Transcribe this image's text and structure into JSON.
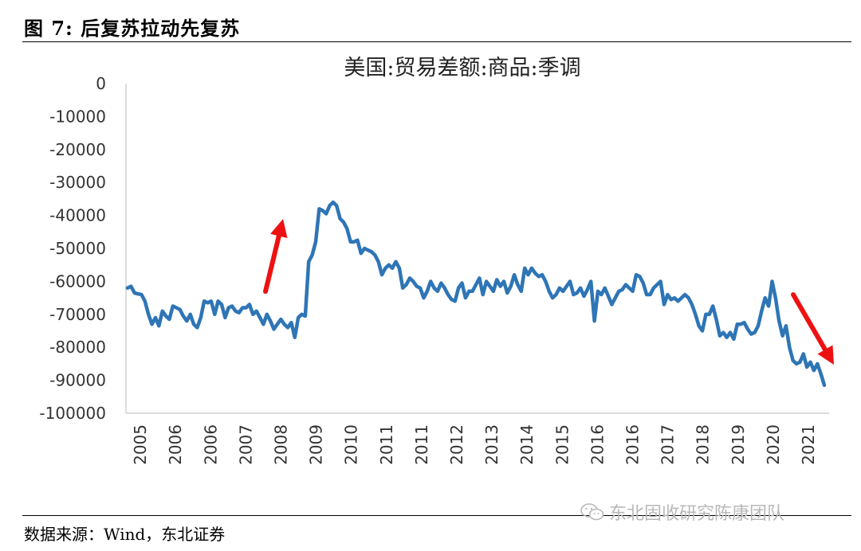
{
  "figure": {
    "title": "图  7:  后复苏拉动先复苏",
    "source": "数据来源：Wind，东北证券",
    "watermark": "东北固收研究陈康团队"
  },
  "colors": {
    "series": "#2e75b6",
    "arrow": "#ee1111",
    "axis": "#d0d0d0"
  },
  "icons": {
    "watermark_icon": "wechat-icon"
  },
  "chart_data": {
    "type": "line",
    "title": "美国:贸易差额:商品:季调",
    "xlabel": "",
    "ylabel": "",
    "ylim": [
      -100000,
      0
    ],
    "yticks": [
      0,
      -10000,
      -20000,
      -30000,
      -40000,
      -50000,
      -60000,
      -70000,
      -80000,
      -90000,
      -100000
    ],
    "xtick_labels": [
      "2005",
      "2006",
      "2006",
      "2007",
      "2008",
      "2009",
      "2010",
      "2011",
      "2011",
      "2012",
      "2013",
      "2014",
      "2015",
      "2016",
      "2016",
      "2017",
      "2018",
      "2019",
      "2020",
      "2021"
    ],
    "x_start": "2005-01",
    "x_end": "2021-02",
    "series": [
      {
        "name": "",
        "values": [
          -62000,
          -61500,
          -63500,
          -63800,
          -64000,
          -66000,
          -70000,
          -73000,
          -71000,
          -73500,
          -69000,
          -70500,
          -71500,
          -67500,
          -68000,
          -68500,
          -70500,
          -72000,
          -70000,
          -73000,
          -74000,
          -71000,
          -66000,
          -66500,
          -66000,
          -70000,
          -66000,
          -67000,
          -71000,
          -68000,
          -67500,
          -69000,
          -69500,
          -68000,
          -68000,
          -67000,
          -70000,
          -69000,
          -71000,
          -73000,
          -70000,
          -72000,
          -74500,
          -73000,
          -71500,
          -73000,
          -74000,
          -72500,
          -77000,
          -71000,
          -70000,
          -70500,
          -54000,
          -52000,
          -48000,
          -38000,
          -38500,
          -39500,
          -37000,
          -36000,
          -37000,
          -41000,
          -42000,
          -44000,
          -48000,
          -48000,
          -47500,
          -51500,
          -50000,
          -50500,
          -51000,
          -52000,
          -54000,
          -58000,
          -56000,
          -55000,
          -56000,
          -54000,
          -56000,
          -62000,
          -61000,
          -59000,
          -60000,
          -61500,
          -62000,
          -65000,
          -63000,
          -60000,
          -62000,
          -63000,
          -60500,
          -62000,
          -64000,
          -65500,
          -66000,
          -62000,
          -60500,
          -65000,
          -63000,
          -63000,
          -61000,
          -59000,
          -64000,
          -60000,
          -61500,
          -63000,
          -59500,
          -61500,
          -60000,
          -63500,
          -61500,
          -58000,
          -61000,
          -63000,
          -56000,
          -58000,
          -56000,
          -57500,
          -58500,
          -58000,
          -60000,
          -63000,
          -65000,
          -64000,
          -62000,
          -63000,
          -61500,
          -60000,
          -64000,
          -63500,
          -62000,
          -64500,
          -62500,
          -60000,
          -72000,
          -63000,
          -64000,
          -62000,
          -64500,
          -67000,
          -65000,
          -63000,
          -62500,
          -61000,
          -62000,
          -63000,
          -58000,
          -58500,
          -60500,
          -64000,
          -64000,
          -62000,
          -61000,
          -60000,
          -67000,
          -64000,
          -65500,
          -65000,
          -66000,
          -65000,
          -64000,
          -65000,
          -67000,
          -70000,
          -73500,
          -75000,
          -70000,
          -70000,
          -67500,
          -71500,
          -76500,
          -75500,
          -77000,
          -75500,
          -77500,
          -73000,
          -73000,
          -72500,
          -74500,
          -76000,
          -75500,
          -73500,
          -69000,
          -65000,
          -67500,
          -60000,
          -65000,
          -72000,
          -76500,
          -73500,
          -80000,
          -84000,
          -85000,
          -84500,
          -82000,
          -86000,
          -84500,
          -87000,
          -85000,
          -88000,
          -91500
        ]
      }
    ],
    "annotations": [
      {
        "type": "arrow",
        "direction": "up",
        "near": "2008"
      },
      {
        "type": "arrow",
        "direction": "down",
        "near": "2020"
      }
    ],
    "grid": false
  }
}
